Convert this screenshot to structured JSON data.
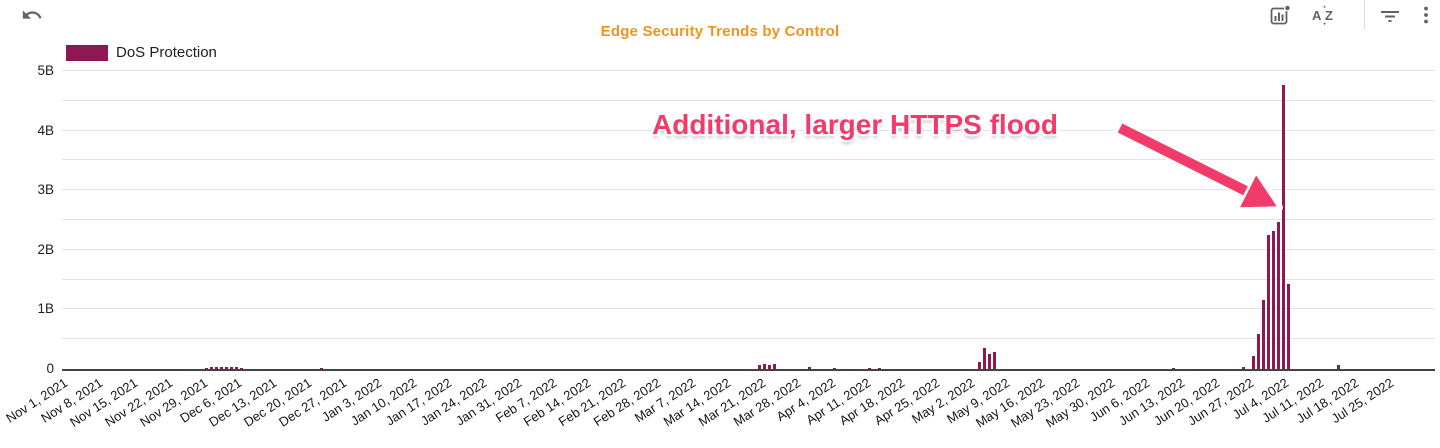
{
  "toolbar": {
    "title": "Edge Security Trends by Control",
    "undo_icon": "undo-arrow",
    "explore_icon": "explore-chart",
    "sort_a": "A",
    "sort_z": "Z",
    "filter_icon": "filter-lines",
    "menu_icon": "kebab-menu"
  },
  "legend": {
    "label": "DoS Protection"
  },
  "annotation": {
    "text": "Additional, larger HTTPS flood"
  },
  "colors": {
    "bar": "#8E1852",
    "title": "#F2921D",
    "annotation": "#F23A6B",
    "grid": "#E3E3E3",
    "axis": "#424242",
    "icon": "#5F6368",
    "text": "#1F1F1F"
  },
  "chart_data": {
    "type": "bar",
    "title": "Edge Security Trends by Control",
    "legend_entries": [
      "DoS Protection"
    ],
    "series_color": "#8E1852",
    "bar_granularity": "daily",
    "x_tick_interval": "weekly",
    "x_axis_start": "Nov 1, 2021",
    "x_axis_end": "Jul 25, 2022",
    "x_span_days": 266,
    "ylim_b": [
      0,
      5
    ],
    "minor_gridline_step_b": 0.5,
    "y_ticks": [
      {
        "value_b": 0,
        "label": "0"
      },
      {
        "value_b": 1,
        "label": "1B"
      },
      {
        "value_b": 2,
        "label": "2B"
      },
      {
        "value_b": 3,
        "label": "3B"
      },
      {
        "value_b": 4,
        "label": "4B"
      },
      {
        "value_b": 5,
        "label": "5B"
      }
    ],
    "x_tick_labels": [
      "Nov 1, 2021",
      "Nov 8, 2021",
      "Nov 15, 2021",
      "Nov 22, 2021",
      "Nov 29, 2021",
      "Dec 6, 2021",
      "Dec 13, 2021",
      "Dec 20, 2021",
      "Dec 27, 2021",
      "Jan 3, 2022",
      "Jan 10, 2022",
      "Jan 17, 2022",
      "Jan 24, 2022",
      "Jan 31, 2022",
      "Feb 7, 2022",
      "Feb 14, 2022",
      "Feb 21, 2022",
      "Feb 28, 2022",
      "Mar 7, 2022",
      "Mar 14, 2022",
      "Mar 21, 2022",
      "Mar 28, 2022",
      "Apr 4, 2022",
      "Apr 11, 2022",
      "Apr 18, 2022",
      "Apr 25, 2022",
      "May 2, 2022",
      "May 9, 2022",
      "May 16, 2022",
      "May 23, 2022",
      "May 30, 2022",
      "Jun 6, 2022",
      "Jun 13, 2022",
      "Jun 20, 2022",
      "Jun 27, 2022",
      "Jul 4, 2022",
      "Jul 11, 2022",
      "Jul 18, 2022",
      "Jul 25, 2022"
    ],
    "bars": [
      {
        "date": "Nov 30, 2021",
        "day": 29,
        "value_b": 0.02
      },
      {
        "date": "Dec 1, 2021",
        "day": 30,
        "value_b": 0.03
      },
      {
        "date": "Dec 2, 2021",
        "day": 31,
        "value_b": 0.04
      },
      {
        "date": "Dec 3, 2021",
        "day": 32,
        "value_b": 0.03
      },
      {
        "date": "Dec 4, 2021",
        "day": 33,
        "value_b": 0.04
      },
      {
        "date": "Dec 5, 2021",
        "day": 34,
        "value_b": 0.03
      },
      {
        "date": "Dec 6, 2021",
        "day": 35,
        "value_b": 0.03
      },
      {
        "date": "Dec 7, 2021",
        "day": 36,
        "value_b": 0.02
      },
      {
        "date": "Dec 23, 2021",
        "day": 52,
        "value_b": 0.02
      },
      {
        "date": "Mar 21, 2022",
        "day": 140,
        "value_b": 0.06
      },
      {
        "date": "Mar 22, 2022",
        "day": 141,
        "value_b": 0.09
      },
      {
        "date": "Mar 23, 2022",
        "day": 142,
        "value_b": 0.07
      },
      {
        "date": "Mar 24, 2022",
        "day": 143,
        "value_b": 0.09
      },
      {
        "date": "Mar 31, 2022",
        "day": 150,
        "value_b": 0.03
      },
      {
        "date": "Apr 5, 2022",
        "day": 155,
        "value_b": 0.02
      },
      {
        "date": "Apr 12, 2022",
        "day": 162,
        "value_b": 0.02
      },
      {
        "date": "Apr 14, 2022",
        "day": 164,
        "value_b": 0.02
      },
      {
        "date": "May 4, 2022",
        "day": 184,
        "value_b": 0.11
      },
      {
        "date": "May 5, 2022",
        "day": 185,
        "value_b": 0.35
      },
      {
        "date": "May 6, 2022",
        "day": 186,
        "value_b": 0.25
      },
      {
        "date": "May 7, 2022",
        "day": 187,
        "value_b": 0.28
      },
      {
        "date": "Jun 12, 2022",
        "day": 223,
        "value_b": 0.02
      },
      {
        "date": "Jun 26, 2022",
        "day": 237,
        "value_b": 0.04
      },
      {
        "date": "Jun 28, 2022",
        "day": 239,
        "value_b": 0.21
      },
      {
        "date": "Jun 29, 2022",
        "day": 240,
        "value_b": 0.58
      },
      {
        "date": "Jun 30, 2022",
        "day": 241,
        "value_b": 1.16
      },
      {
        "date": "Jul 1, 2022",
        "day": 242,
        "value_b": 2.25
      },
      {
        "date": "Jul 2, 2022",
        "day": 243,
        "value_b": 2.32
      },
      {
        "date": "Jul 3, 2022",
        "day": 244,
        "value_b": 2.47
      },
      {
        "date": "Jul 4, 2022",
        "day": 245,
        "value_b": 4.77
      },
      {
        "date": "Jul 5, 2022",
        "day": 246,
        "value_b": 1.43
      },
      {
        "date": "Jul 15, 2022",
        "day": 256,
        "value_b": 0.06
      }
    ],
    "annotations": [
      {
        "text": "Additional, larger HTTPS flood",
        "points_to": "Jul 4, 2022 spike"
      }
    ]
  }
}
